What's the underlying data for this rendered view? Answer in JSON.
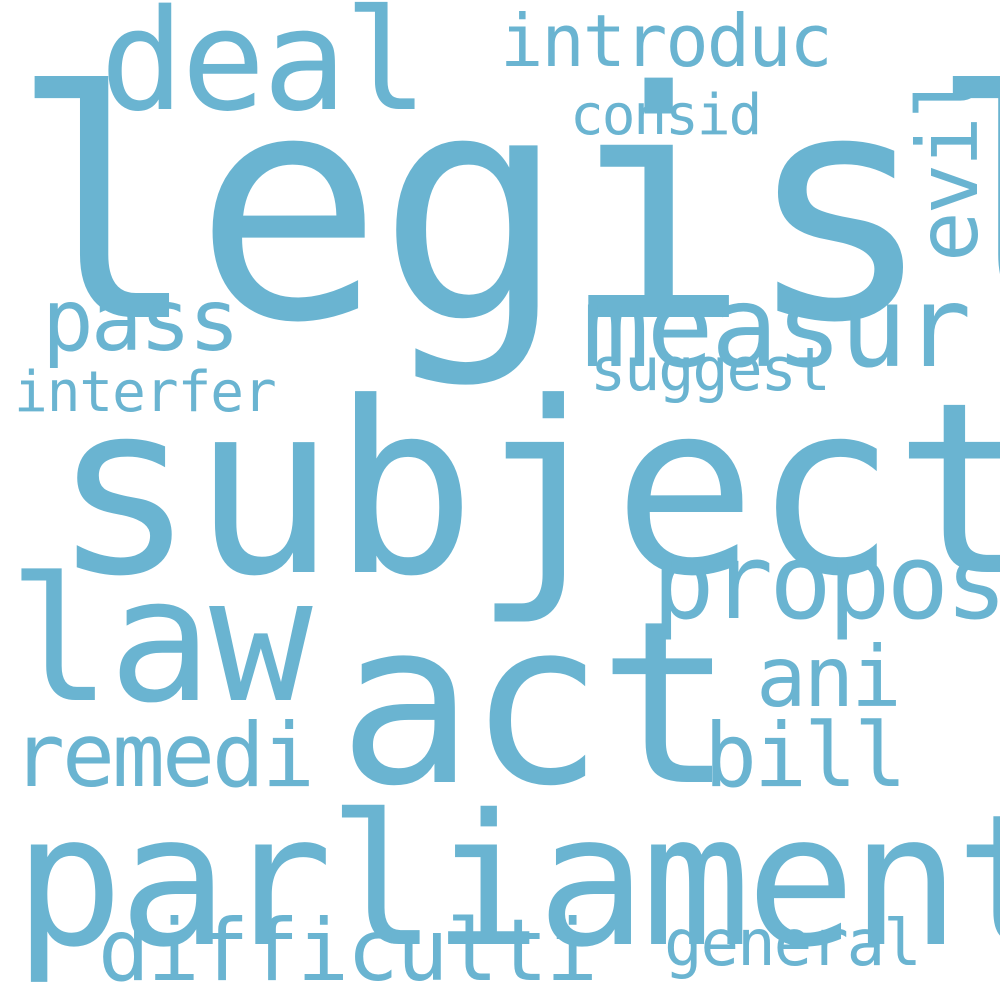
{
  "cloud": {
    "color": "#6ab4d1",
    "background": "#ffffff",
    "words": [
      "legisl",
      "subject",
      "parliament",
      "act",
      "law",
      "deal",
      "measur",
      "propos",
      "remedi",
      "bill",
      "ani",
      "pass",
      "difficulti",
      "introduc",
      "general",
      "suggest",
      "interfer",
      "consid",
      "evil"
    ]
  }
}
